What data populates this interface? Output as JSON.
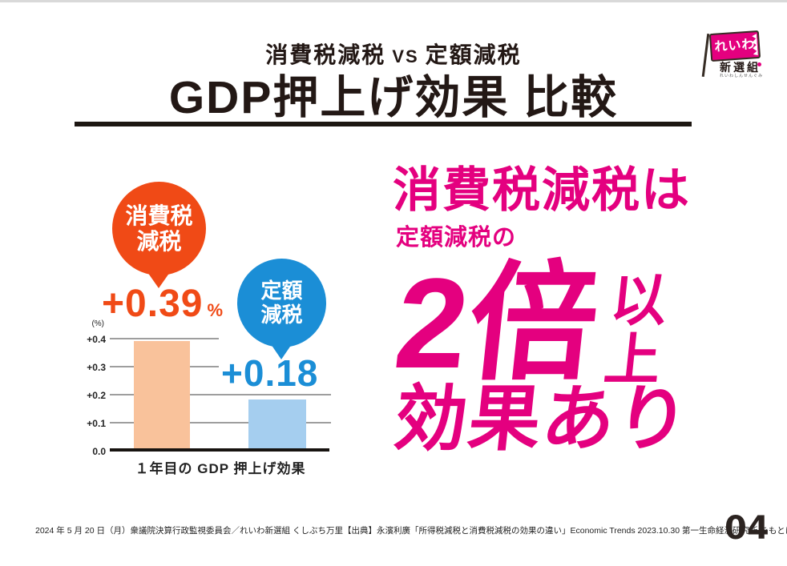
{
  "colors": {
    "pink": "#E4007F",
    "orange": "#F04A16",
    "blue": "#1B8ED6",
    "ink": "#231815"
  },
  "header": {
    "subtitle_left": "消費税減税",
    "subtitle_vs": "VS",
    "subtitle_right": "定額減税",
    "title": "GDP押上げ効果 比較"
  },
  "logo": {
    "flag_text": "れいわ",
    "group_text": "新選組",
    "reading_text": "れいわしんせんぐみ"
  },
  "bubbles": [
    {
      "line1": "消費税",
      "line2": "減税",
      "color": "#F04A16"
    },
    {
      "line1": "定額",
      "line2": "減税",
      "color": "#1B8ED6"
    }
  ],
  "chart_data": {
    "type": "bar",
    "title": "",
    "categories": [
      "消費税減税",
      "定額減税"
    ],
    "values": [
      0.39,
      0.18
    ],
    "value_labels": [
      "+0.39",
      "+0.18"
    ],
    "value_unit": "%",
    "xlabel": "１年目の GDP 押上げ効果",
    "ylabel": "(%)",
    "ylim": [
      0,
      0.4
    ],
    "yticks": [
      "+0.4",
      "+0.3",
      "+0.2",
      "+0.1",
      "0.0"
    ],
    "grid": true,
    "legend": "none",
    "bar_colors": [
      "#F9C29B",
      "#A5CEEF"
    ],
    "label_colors": [
      "#F04A16",
      "#1B8ED6"
    ]
  },
  "headline": {
    "line1": "消費税減税は",
    "line2": "定額減税の",
    "big_number": "2倍",
    "big_suffix": "以上",
    "line3": "効果あり",
    "color": "#E4007F"
  },
  "footer": {
    "citation": "2024 年 5 月 20 日（月）衆議院決算行政監視委員会／れいわ新選組 くしぶち万里【出典】永濱利廣「所得税減税と消費税減税の効果の違い」Economic Trends 2023.10.30 第一生命経済研究所 をもとにくしぶち万里事務所作成",
    "page_number": "04"
  }
}
